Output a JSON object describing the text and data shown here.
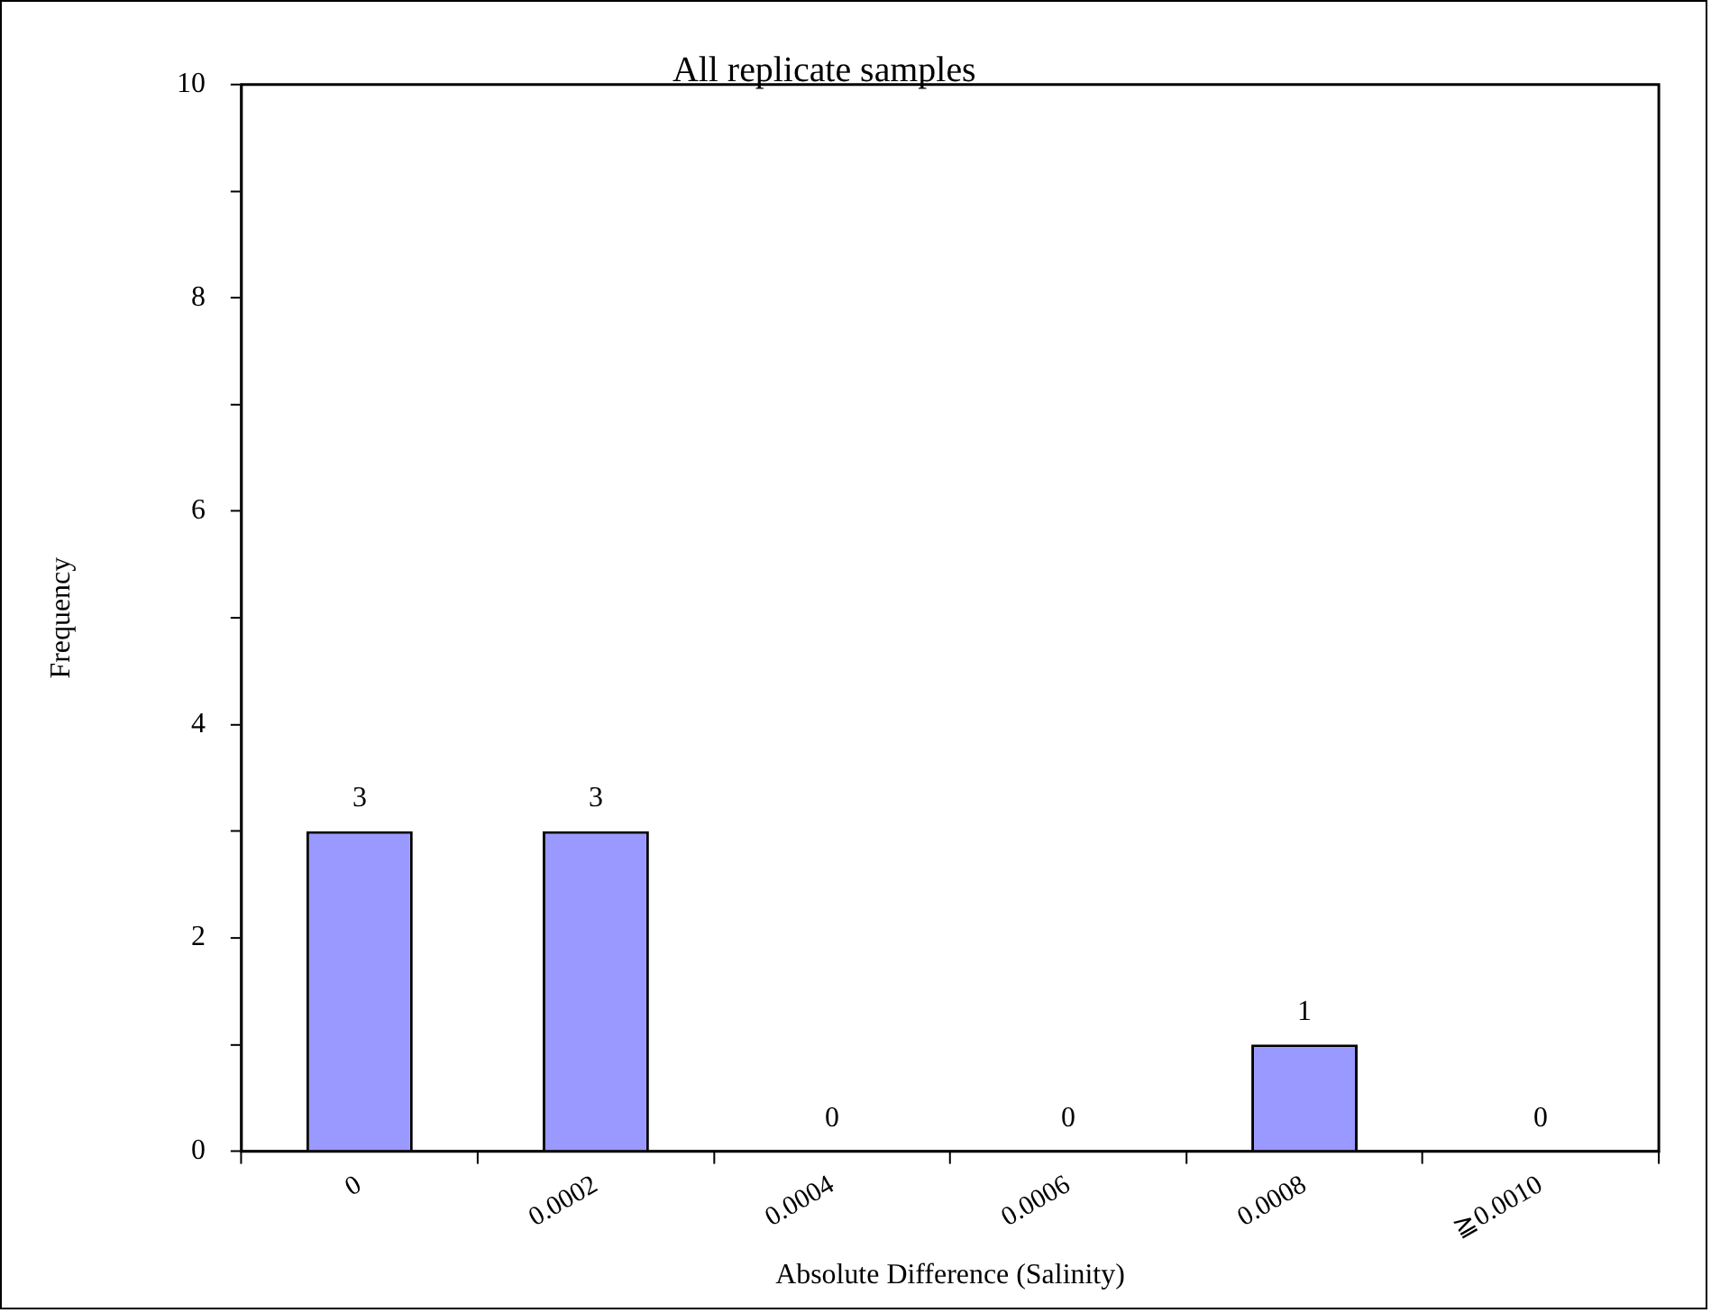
{
  "chart_data": {
    "type": "bar",
    "title": "All replicate samples",
    "xlabel": "Absolute Difference (Salinity)",
    "ylabel": "Frequency",
    "categories": [
      "0",
      "0.0002",
      "0.0004",
      "0.0006",
      "0.0008",
      "≧0.0010"
    ],
    "values": [
      3,
      3,
      0,
      0,
      1,
      0
    ],
    "color": "#9999ff",
    "ylim": [
      0,
      10
    ],
    "yticks": [
      0,
      {
        "value": 1,
        "label": null
      },
      2,
      {
        "value": 3,
        "label": null
      },
      4,
      {
        "value": 5,
        "label": null
      },
      6,
      {
        "value": 7,
        "label": null
      },
      8,
      {
        "value": 9,
        "label": null
      },
      10
    ],
    "data_labels": true
  }
}
